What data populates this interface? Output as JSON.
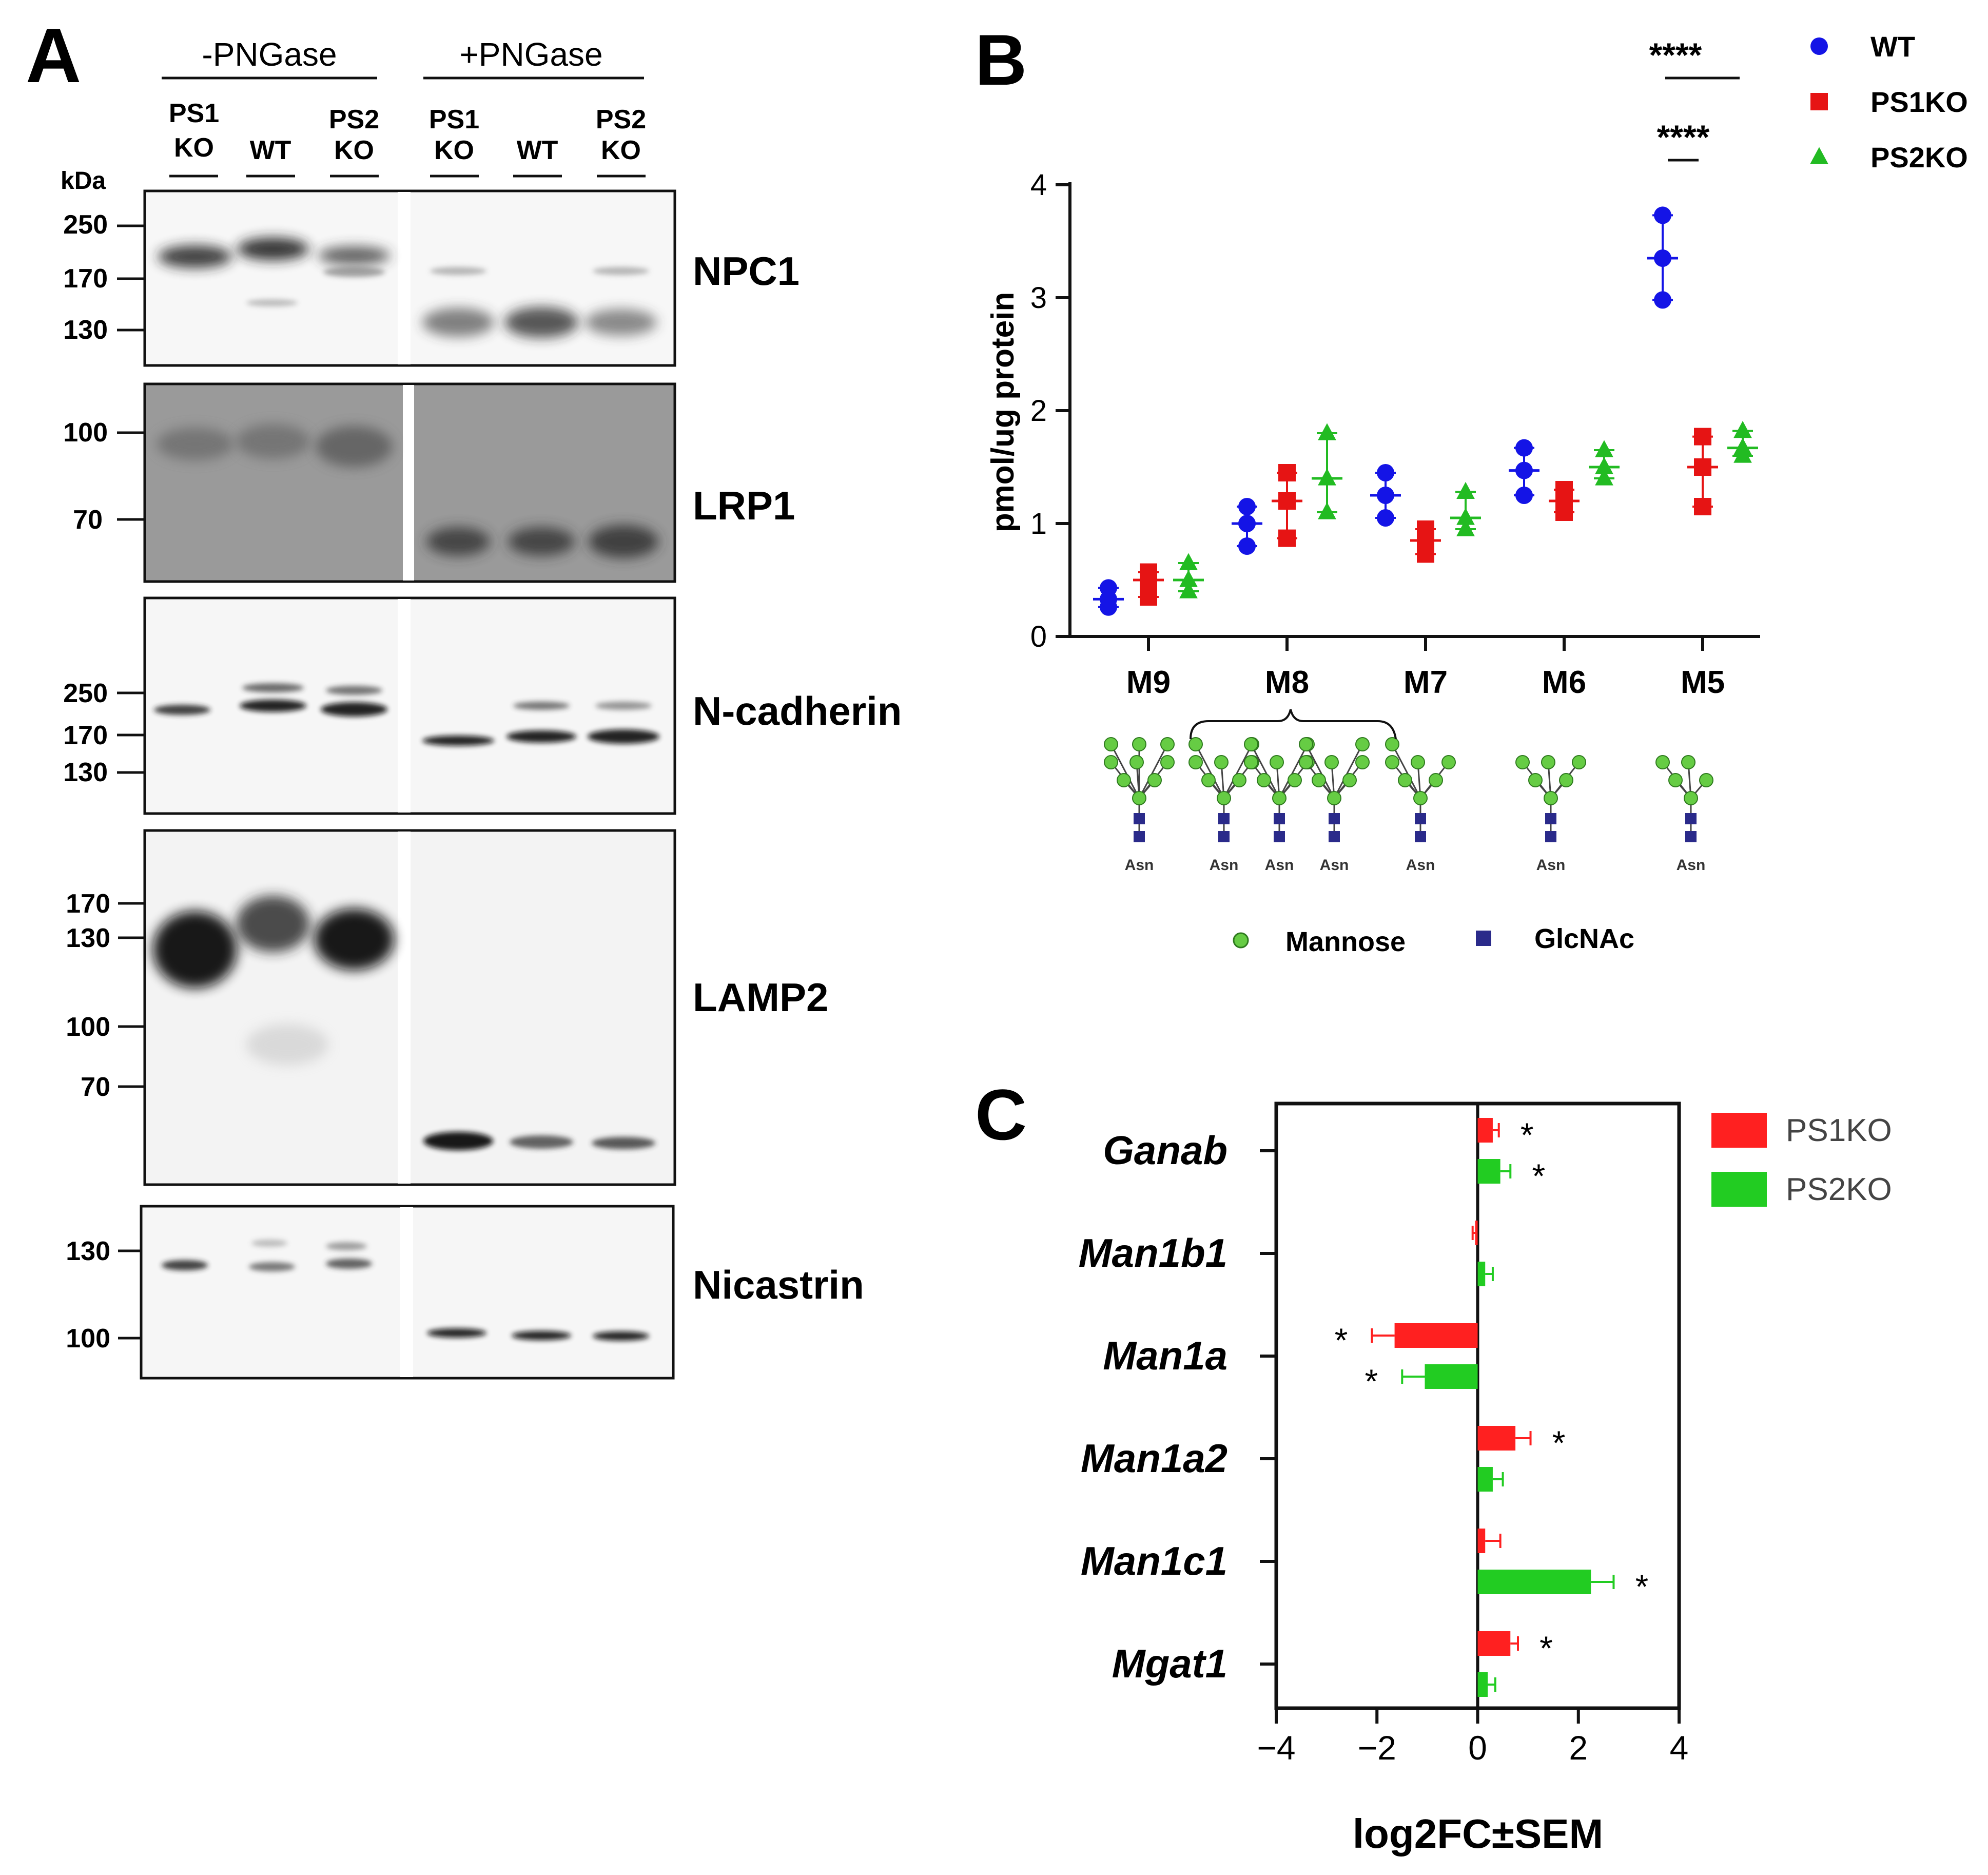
{
  "panel_a": {
    "letter": "A",
    "conditions": [
      "-PNGase",
      "+PNGase"
    ],
    "lanes": [
      {
        "l1": "PS1",
        "l2": "KO"
      },
      {
        "l1": "",
        "l2": "WT"
      },
      {
        "l1": "PS2",
        "l2": "KO"
      },
      {
        "l1": "PS1",
        "l2": "KO"
      },
      {
        "l1": "",
        "l2": "WT"
      },
      {
        "l1": "PS2",
        "l2": "KO"
      }
    ],
    "kda_label": "kDa",
    "blots": [
      {
        "name": "NPC1",
        "markers": [
          "250",
          "170",
          "130"
        ],
        "shaded": false
      },
      {
        "name": "LRP1",
        "markers": [
          "100",
          "70"
        ],
        "shaded": true
      },
      {
        "name": "N-cadherin",
        "markers": [
          "250",
          "170",
          "130"
        ],
        "shaded": false
      },
      {
        "name": "LAMP2",
        "markers": [
          "170",
          "130",
          "100",
          "70"
        ],
        "shaded": false
      },
      {
        "name": "Nicastrin",
        "markers": [
          "130",
          "100"
        ],
        "shaded": false
      }
    ]
  },
  "panel_b": {
    "letter": "B",
    "glycan_legend": {
      "mannose": "Mannose",
      "glcnac": "GlcNAc",
      "asn": "Asn"
    },
    "significance": [
      "****",
      "****"
    ],
    "colors": {
      "WT": "#1414e6",
      "PS1KO": "#e61414",
      "PS2KO": "#22bb22",
      "mannose": "#66cc44",
      "glcnac": "#2a2a8a"
    }
  },
  "panel_c": {
    "letter": "C",
    "star": "*"
  },
  "chart_data": [
    {
      "type": "scatter",
      "ylabel": "pmol/ug protein",
      "xlabel": "",
      "ylim": [
        0,
        4
      ],
      "yticks": [
        "0",
        "1",
        "2",
        "3",
        "4"
      ],
      "categories": [
        "M9",
        "M8",
        "M7",
        "M6",
        "M5"
      ],
      "legend_position": "top-right",
      "series": [
        {
          "name": "WT",
          "marker": "circle",
          "points": [
            [
              0.43,
              0.26,
              0.33
            ],
            [
              1.15,
              0.8,
              1.0
            ],
            [
              1.45,
              1.05,
              1.25
            ],
            [
              1.67,
              1.25,
              1.47
            ],
            [
              3.73,
              2.98,
              3.35
            ]
          ]
        },
        {
          "name": "PS1KO",
          "marker": "square",
          "points": [
            [
              0.57,
              0.35,
              0.5
            ],
            [
              1.45,
              0.87,
              1.2
            ],
            [
              0.95,
              0.73,
              0.85
            ],
            [
              1.3,
              1.1,
              1.2
            ],
            [
              1.77,
              1.15,
              1.5
            ]
          ]
        },
        {
          "name": "PS2KO",
          "marker": "triangle",
          "points": [
            [
              0.65,
              0.4,
              0.5
            ],
            [
              1.8,
              1.1,
              1.4
            ],
            [
              1.28,
              0.95,
              1.05
            ],
            [
              1.65,
              1.4,
              1.5
            ],
            [
              1.82,
              1.6,
              1.67
            ]
          ]
        }
      ]
    },
    {
      "type": "bar",
      "orientation": "horizontal",
      "xlabel": "log2FC±SEM",
      "ylabel": "",
      "xlim": [
        -4,
        4
      ],
      "xticks": [
        "−4",
        "−2",
        "0",
        "2",
        "4"
      ],
      "categories": [
        "Ganab",
        "Man1b1",
        "Man1a",
        "Man1a2",
        "Man1c1",
        "Mgat1"
      ],
      "legend_position": "top-right",
      "series": [
        {
          "name": "PS1KO",
          "values": [
            0.3,
            -0.05,
            -1.65,
            0.75,
            0.15,
            0.65
          ],
          "sem": [
            0.12,
            0.05,
            0.45,
            0.3,
            0.3,
            0.15
          ],
          "significant": [
            true,
            false,
            true,
            true,
            false,
            true
          ]
        },
        {
          "name": "PS2KO",
          "values": [
            0.45,
            0.15,
            -1.05,
            0.3,
            2.25,
            0.2
          ],
          "sem": [
            0.2,
            0.15,
            0.45,
            0.2,
            0.45,
            0.15
          ],
          "significant": [
            true,
            false,
            true,
            false,
            true,
            false
          ]
        }
      ]
    }
  ]
}
